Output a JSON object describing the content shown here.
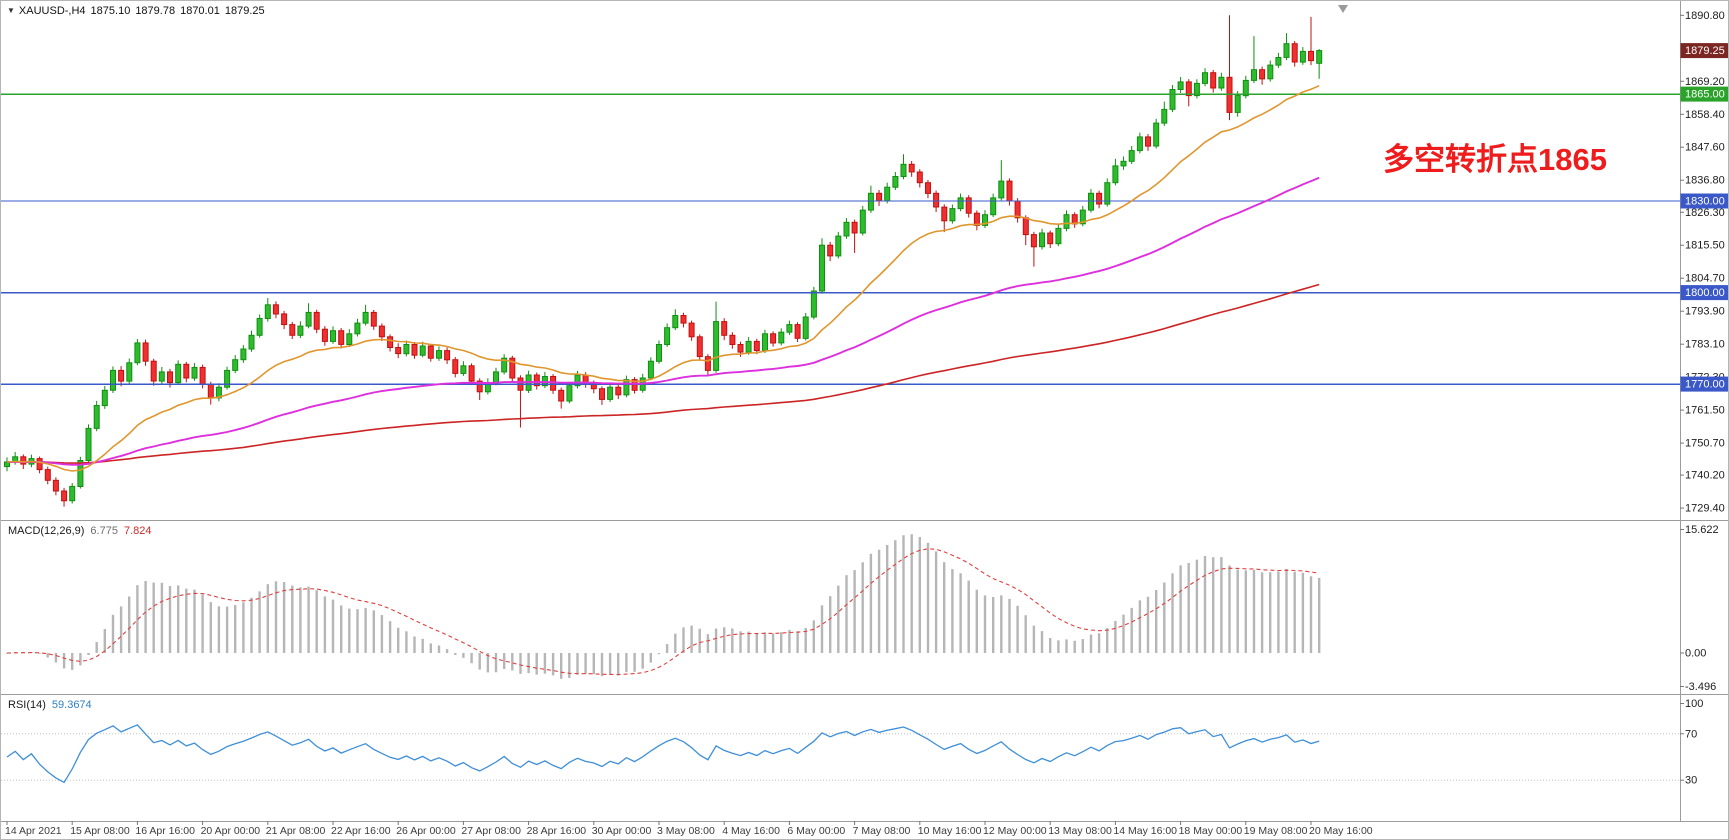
{
  "header": {
    "collapse_arrow": "▼",
    "symbol": "XAUUSD-,H4",
    "open": "1875.10",
    "high": "1879.78",
    "low": "1870.01",
    "close": "1879.25"
  },
  "chart_data": {
    "type": "candlestick",
    "symbol": "XAUUSD-",
    "timeframe": "H4",
    "current_bar": {
      "open": 1875.1,
      "high": 1879.78,
      "low": 1870.01,
      "close": 1879.25
    },
    "y_axis": {
      "top": 1895.5,
      "bottom": 1725.5,
      "labels": [
        "1890.80",
        "1869.20",
        "1858.40",
        "1847.60",
        "1836.80",
        "1826.30",
        "1815.50",
        "1804.70",
        "1793.90",
        "1783.10",
        "1772.30",
        "1761.50",
        "1750.70",
        "1740.20",
        "1729.40"
      ]
    },
    "x_labels": [
      [
        0,
        "14 Apr 2021"
      ],
      [
        8,
        "15 Apr 08:00"
      ],
      [
        16,
        "16 Apr 16:00"
      ],
      [
        24,
        "20 Apr 00:00"
      ],
      [
        32,
        "21 Apr 08:00"
      ],
      [
        40,
        "22 Apr 16:00"
      ],
      [
        48,
        "26 Apr 00:00"
      ],
      [
        56,
        "27 Apr 08:00"
      ],
      [
        64,
        "28 Apr 16:00"
      ],
      [
        72,
        "30 Apr 00:00"
      ],
      [
        80,
        "3 May 08:00"
      ],
      [
        88,
        "4 May 16:00"
      ],
      [
        96,
        "6 May 00:00"
      ],
      [
        104,
        "7 May 08:00"
      ],
      [
        112,
        "10 May 16:00"
      ],
      [
        120,
        "12 May 00:00"
      ],
      [
        128,
        "13 May 08:00"
      ],
      [
        136,
        "14 May 16:00"
      ],
      [
        144,
        "18 May 00:00"
      ],
      [
        152,
        "19 May 08:00"
      ],
      [
        160,
        "20 May 16:00"
      ]
    ],
    "candle_colors": {
      "up": "#2ebc2e",
      "up_stroke": "#0f8f0f",
      "down": "#f03030",
      "down_stroke": "#c01010"
    },
    "candles": [
      [
        1743.0,
        1746.0,
        1741.5,
        1744.5
      ],
      [
        1744.5,
        1747.8,
        1743.6,
        1746.2
      ],
      [
        1746.2,
        1747.0,
        1742.2,
        1743.8
      ],
      [
        1743.8,
        1746.9,
        1742.8,
        1745.6
      ],
      [
        1745.6,
        1746.3,
        1740.8,
        1742.0
      ],
      [
        1742.0,
        1743.0,
        1737.2,
        1738.5
      ],
      [
        1738.5,
        1739.5,
        1733.6,
        1735.0
      ],
      [
        1735.0,
        1736.0,
        1729.9,
        1731.8
      ],
      [
        1731.8,
        1737.6,
        1730.9,
        1736.5
      ],
      [
        1736.5,
        1746.2,
        1735.8,
        1745.0
      ],
      [
        1745.0,
        1756.8,
        1744.2,
        1755.5
      ],
      [
        1755.5,
        1764.5,
        1754.6,
        1763.0
      ],
      [
        1763.0,
        1769.4,
        1761.9,
        1768.0
      ],
      [
        1768.0,
        1775.8,
        1767.1,
        1774.5
      ],
      [
        1774.5,
        1775.9,
        1769.3,
        1771.0
      ],
      [
        1771.0,
        1778.4,
        1770.2,
        1777.0
      ],
      [
        1777.0,
        1784.8,
        1776.2,
        1783.5
      ],
      [
        1783.5,
        1784.6,
        1776.0,
        1777.5
      ],
      [
        1777.5,
        1778.3,
        1769.5,
        1771.0
      ],
      [
        1771.0,
        1775.6,
        1769.8,
        1774.0
      ],
      [
        1774.0,
        1775.0,
        1768.9,
        1770.5
      ],
      [
        1770.5,
        1777.8,
        1769.7,
        1776.5
      ],
      [
        1776.5,
        1777.3,
        1770.6,
        1772.0
      ],
      [
        1772.0,
        1776.9,
        1771.1,
        1775.5
      ],
      [
        1775.5,
        1776.4,
        1768.6,
        1770.0
      ],
      [
        1770.0,
        1770.8,
        1763.3,
        1765.5
      ],
      [
        1765.5,
        1770.3,
        1764.4,
        1769.0
      ],
      [
        1769.0,
        1775.7,
        1768.2,
        1774.5
      ],
      [
        1774.5,
        1779.5,
        1773.6,
        1778.0
      ],
      [
        1778.0,
        1782.8,
        1777.0,
        1781.5
      ],
      [
        1781.5,
        1787.5,
        1780.6,
        1786.0
      ],
      [
        1786.0,
        1792.8,
        1785.2,
        1791.5
      ],
      [
        1791.5,
        1798.2,
        1790.5,
        1796.0
      ],
      [
        1796.0,
        1797.1,
        1791.6,
        1793.0
      ],
      [
        1793.0,
        1794.0,
        1788.0,
        1789.5
      ],
      [
        1789.5,
        1790.4,
        1784.8,
        1786.0
      ],
      [
        1786.0,
        1790.6,
        1785.1,
        1789.0
      ],
      [
        1789.0,
        1796.5,
        1788.3,
        1793.5
      ],
      [
        1793.5,
        1794.4,
        1786.7,
        1788.0
      ],
      [
        1788.0,
        1789.0,
        1782.6,
        1784.0
      ],
      [
        1784.0,
        1788.9,
        1783.2,
        1787.5
      ],
      [
        1787.5,
        1788.4,
        1781.7,
        1783.0
      ],
      [
        1783.0,
        1788.0,
        1782.2,
        1786.5
      ],
      [
        1786.5,
        1791.4,
        1785.6,
        1790.0
      ],
      [
        1790.0,
        1796.0,
        1789.2,
        1793.5
      ],
      [
        1793.5,
        1794.3,
        1787.8,
        1789.0
      ],
      [
        1789.0,
        1789.9,
        1784.1,
        1785.5
      ],
      [
        1785.5,
        1786.3,
        1780.7,
        1782.0
      ],
      [
        1782.0,
        1783.4,
        1778.5,
        1780.0
      ],
      [
        1780.0,
        1784.3,
        1779.1,
        1783.0
      ],
      [
        1783.0,
        1783.8,
        1778.3,
        1779.5
      ],
      [
        1779.5,
        1783.9,
        1778.8,
        1782.5
      ],
      [
        1782.5,
        1783.2,
        1777.4,
        1778.5
      ],
      [
        1778.5,
        1782.4,
        1777.6,
        1781.0
      ],
      [
        1781.0,
        1782.0,
        1776.6,
        1778.0
      ],
      [
        1778.0,
        1778.9,
        1772.2,
        1773.5
      ],
      [
        1773.5,
        1777.5,
        1772.7,
        1776.0
      ],
      [
        1776.0,
        1776.8,
        1769.7,
        1771.0
      ],
      [
        1771.0,
        1771.9,
        1764.8,
        1767.5
      ],
      [
        1767.5,
        1771.9,
        1766.6,
        1770.5
      ],
      [
        1770.5,
        1775.4,
        1769.6,
        1774.0
      ],
      [
        1774.0,
        1779.8,
        1773.2,
        1778.5
      ],
      [
        1778.5,
        1779.3,
        1770.8,
        1772.0
      ],
      [
        1772.0,
        1772.9,
        1755.8,
        1768.0
      ],
      [
        1768.0,
        1774.4,
        1767.1,
        1773.0
      ],
      [
        1773.0,
        1773.8,
        1768.2,
        1769.5
      ],
      [
        1769.5,
        1774.0,
        1768.7,
        1772.5
      ],
      [
        1772.5,
        1773.3,
        1766.8,
        1768.0
      ],
      [
        1768.0,
        1768.9,
        1762.0,
        1764.5
      ],
      [
        1764.5,
        1770.8,
        1763.7,
        1769.5
      ],
      [
        1769.5,
        1774.3,
        1768.6,
        1773.0
      ],
      [
        1773.0,
        1773.9,
        1768.8,
        1770.0
      ],
      [
        1770.0,
        1771.2,
        1767.0,
        1768.5
      ],
      [
        1768.5,
        1769.3,
        1763.2,
        1765.0
      ],
      [
        1765.0,
        1770.2,
        1764.2,
        1769.0
      ],
      [
        1769.0,
        1769.8,
        1765.1,
        1766.5
      ],
      [
        1766.5,
        1772.8,
        1765.7,
        1771.5
      ],
      [
        1771.5,
        1772.3,
        1766.9,
        1768.0
      ],
      [
        1768.0,
        1773.4,
        1767.2,
        1772.0
      ],
      [
        1772.0,
        1778.8,
        1771.3,
        1777.5
      ],
      [
        1777.5,
        1784.3,
        1776.7,
        1783.0
      ],
      [
        1783.0,
        1789.9,
        1782.2,
        1788.5
      ],
      [
        1788.5,
        1794.5,
        1787.7,
        1792.5
      ],
      [
        1792.5,
        1793.4,
        1788.6,
        1790.0
      ],
      [
        1790.0,
        1790.8,
        1784.2,
        1785.5
      ],
      [
        1785.5,
        1786.3,
        1777.6,
        1779.0
      ],
      [
        1779.0,
        1779.8,
        1772.5,
        1774.5
      ],
      [
        1774.5,
        1797.0,
        1773.7,
        1790.5
      ],
      [
        1790.5,
        1791.6,
        1784.4,
        1786.0
      ],
      [
        1786.0,
        1787.0,
        1781.6,
        1783.0
      ],
      [
        1783.0,
        1783.9,
        1779.0,
        1780.5
      ],
      [
        1780.5,
        1785.4,
        1779.6,
        1784.0
      ],
      [
        1784.0,
        1784.9,
        1779.8,
        1781.0
      ],
      [
        1781.0,
        1787.8,
        1780.2,
        1786.5
      ],
      [
        1786.5,
        1787.3,
        1782.3,
        1783.5
      ],
      [
        1783.5,
        1788.3,
        1782.7,
        1787.0
      ],
      [
        1787.0,
        1790.8,
        1786.1,
        1789.5
      ],
      [
        1789.5,
        1790.3,
        1783.8,
        1785.0
      ],
      [
        1785.0,
        1793.3,
        1784.3,
        1792.0
      ],
      [
        1792.0,
        1801.9,
        1791.2,
        1800.5
      ],
      [
        1800.5,
        1817.8,
        1799.6,
        1815.5
      ],
      [
        1815.5,
        1816.6,
        1810.3,
        1812.0
      ],
      [
        1812.0,
        1819.9,
        1811.2,
        1818.5
      ],
      [
        1818.5,
        1824.4,
        1817.6,
        1823.0
      ],
      [
        1823.0,
        1823.9,
        1813.0,
        1819.5
      ],
      [
        1819.5,
        1828.4,
        1818.7,
        1827.0
      ],
      [
        1827.0,
        1835.0,
        1826.1,
        1832.5
      ],
      [
        1832.5,
        1833.6,
        1828.4,
        1830.0
      ],
      [
        1830.0,
        1836.0,
        1829.2,
        1834.5
      ],
      [
        1834.5,
        1839.5,
        1833.6,
        1838.0
      ],
      [
        1838.0,
        1845.3,
        1837.1,
        1842.0
      ],
      [
        1842.0,
        1843.1,
        1837.9,
        1839.5
      ],
      [
        1839.5,
        1840.4,
        1834.4,
        1836.0
      ],
      [
        1836.0,
        1836.9,
        1830.9,
        1832.5
      ],
      [
        1832.5,
        1833.4,
        1826.4,
        1828.0
      ],
      [
        1828.0,
        1828.9,
        1819.8,
        1823.5
      ],
      [
        1823.5,
        1828.8,
        1822.6,
        1827.5
      ],
      [
        1827.5,
        1832.4,
        1826.6,
        1831.0
      ],
      [
        1831.0,
        1831.9,
        1824.6,
        1826.0
      ],
      [
        1826.0,
        1826.9,
        1820.4,
        1822.0
      ],
      [
        1822.0,
        1827.0,
        1821.1,
        1825.5
      ],
      [
        1825.5,
        1832.4,
        1824.7,
        1831.0
      ],
      [
        1831.0,
        1843.4,
        1830.2,
        1836.5
      ],
      [
        1836.5,
        1837.4,
        1828.5,
        1830.0
      ],
      [
        1830.0,
        1830.9,
        1822.9,
        1824.5
      ],
      [
        1824.5,
        1825.3,
        1815.5,
        1819.0
      ],
      [
        1819.0,
        1819.9,
        1808.5,
        1815.0
      ],
      [
        1815.0,
        1820.9,
        1814.1,
        1819.5
      ],
      [
        1819.5,
        1820.3,
        1814.6,
        1816.0
      ],
      [
        1816.0,
        1822.4,
        1815.2,
        1821.0
      ],
      [
        1821.0,
        1826.9,
        1820.1,
        1825.5
      ],
      [
        1825.5,
        1826.3,
        1821.2,
        1822.5
      ],
      [
        1822.5,
        1828.4,
        1821.7,
        1827.0
      ],
      [
        1827.0,
        1833.9,
        1826.2,
        1832.5
      ],
      [
        1832.5,
        1833.4,
        1827.6,
        1829.0
      ],
      [
        1829.0,
        1837.4,
        1828.2,
        1836.0
      ],
      [
        1836.0,
        1843.8,
        1835.1,
        1841.5
      ],
      [
        1841.5,
        1844.6,
        1840.2,
        1843.0
      ],
      [
        1843.0,
        1848.0,
        1842.1,
        1846.5
      ],
      [
        1846.5,
        1852.4,
        1845.6,
        1851.0
      ],
      [
        1851.0,
        1851.9,
        1846.4,
        1848.0
      ],
      [
        1848.0,
        1856.9,
        1847.2,
        1855.5
      ],
      [
        1855.5,
        1862.5,
        1854.6,
        1860.0
      ],
      [
        1860.0,
        1868.0,
        1859.1,
        1866.5
      ],
      [
        1866.5,
        1870.6,
        1865.4,
        1869.0
      ],
      [
        1869.0,
        1869.9,
        1861.0,
        1864.5
      ],
      [
        1864.5,
        1869.9,
        1863.6,
        1868.5
      ],
      [
        1868.5,
        1873.5,
        1867.6,
        1872.0
      ],
      [
        1872.0,
        1872.9,
        1865.5,
        1867.0
      ],
      [
        1867.0,
        1872.0,
        1866.1,
        1870.5
      ],
      [
        1870.5,
        1890.8,
        1856.5,
        1859.0
      ],
      [
        1859.0,
        1866.0,
        1857.6,
        1864.5
      ],
      [
        1864.5,
        1871.0,
        1863.6,
        1869.5
      ],
      [
        1869.5,
        1884.0,
        1868.6,
        1873.0
      ],
      [
        1873.0,
        1874.0,
        1868.1,
        1870.0
      ],
      [
        1870.0,
        1876.0,
        1869.1,
        1874.5
      ],
      [
        1874.5,
        1878.5,
        1873.6,
        1877.0
      ],
      [
        1877.0,
        1885.0,
        1876.1,
        1881.5
      ],
      [
        1881.5,
        1882.4,
        1874.0,
        1875.5
      ],
      [
        1875.5,
        1880.4,
        1874.6,
        1879.0
      ],
      [
        1879.0,
        1890.3,
        1874.5,
        1876.0
      ],
      [
        1875.1,
        1879.78,
        1870.01,
        1879.25
      ]
    ],
    "moving_averages": [
      {
        "name": "ma-fast",
        "period": 21,
        "color": "#e0962e"
      },
      {
        "name": "ma-mid",
        "period": 75,
        "color": "#dd2fdd"
      },
      {
        "name": "ma-slow",
        "period": 200,
        "color": "#cc2424"
      }
    ],
    "hlines": [
      {
        "value": 1865.0,
        "label": "1865.00",
        "color": "#2ba32b"
      },
      {
        "value": 1830.0,
        "label": "1830.00",
        "color": "#3a58c8"
      },
      {
        "value": 1800.0,
        "label": "1800.00",
        "color": "#3a58c8"
      },
      {
        "value": 1770.0,
        "label": "1770.00",
        "color": "#3a58c8"
      }
    ],
    "current_price": {
      "value": 1879.25,
      "label": "1879.25",
      "badge_color": "#7c2622"
    },
    "indicators": {
      "macd": {
        "title": "MACD(12,26,9)",
        "fast": 12,
        "slow": 26,
        "signal": 9,
        "value_main": "6.775",
        "value_signal": "7.824",
        "scale_max": "15.622",
        "scale_zero": "0.00",
        "scale_min": "-3.496",
        "histogram_color": "#b6b6b6",
        "signal_color": "#e04040"
      },
      "rsi": {
        "title": "RSI(14)",
        "period": 14,
        "value": "59.3674",
        "levels": [
          "100",
          "70",
          "30"
        ],
        "line_color": "#3e8fd8"
      }
    },
    "annotation": {
      "text": "多空转折点1865",
      "color": "#ee1c1c"
    }
  }
}
